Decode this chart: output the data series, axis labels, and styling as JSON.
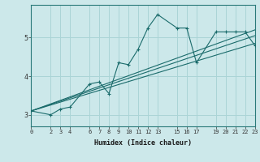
{
  "xlabel": "Humidex (Indice chaleur)",
  "background_color": "#cce8ea",
  "grid_color": "#aad4d6",
  "line_color": "#1a6b6b",
  "xlim": [
    0,
    23
  ],
  "ylim": [
    2.7,
    5.85
  ],
  "yticks": [
    3,
    4,
    5
  ],
  "xticks": [
    0,
    2,
    3,
    4,
    6,
    7,
    8,
    9,
    10,
    11,
    12,
    13,
    15,
    16,
    17,
    19,
    20,
    21,
    22,
    23
  ],
  "xtick_labels": [
    "0",
    "2",
    "3",
    "4",
    "6",
    "7",
    "8",
    "9",
    "10",
    "11",
    "12",
    "13",
    "15",
    "16",
    "17",
    "19",
    "20",
    "21",
    "22",
    "23"
  ],
  "series1_x": [
    0,
    2,
    3,
    4,
    6,
    7,
    8,
    9,
    10,
    11,
    12,
    13,
    15,
    16,
    17,
    19,
    20,
    21,
    22,
    23
  ],
  "series1_y": [
    3.1,
    3.0,
    3.15,
    3.2,
    3.8,
    3.85,
    3.55,
    4.35,
    4.3,
    4.7,
    5.25,
    5.6,
    5.25,
    5.25,
    4.35,
    5.15,
    5.15,
    5.15,
    5.15,
    4.8
  ],
  "series2_x": [
    0,
    23
  ],
  "series2_y": [
    3.1,
    5.2
  ],
  "series3_x": [
    0,
    23
  ],
  "series3_y": [
    3.1,
    4.85
  ],
  "series4_x": [
    0,
    23
  ],
  "series4_y": [
    3.1,
    5.05
  ]
}
